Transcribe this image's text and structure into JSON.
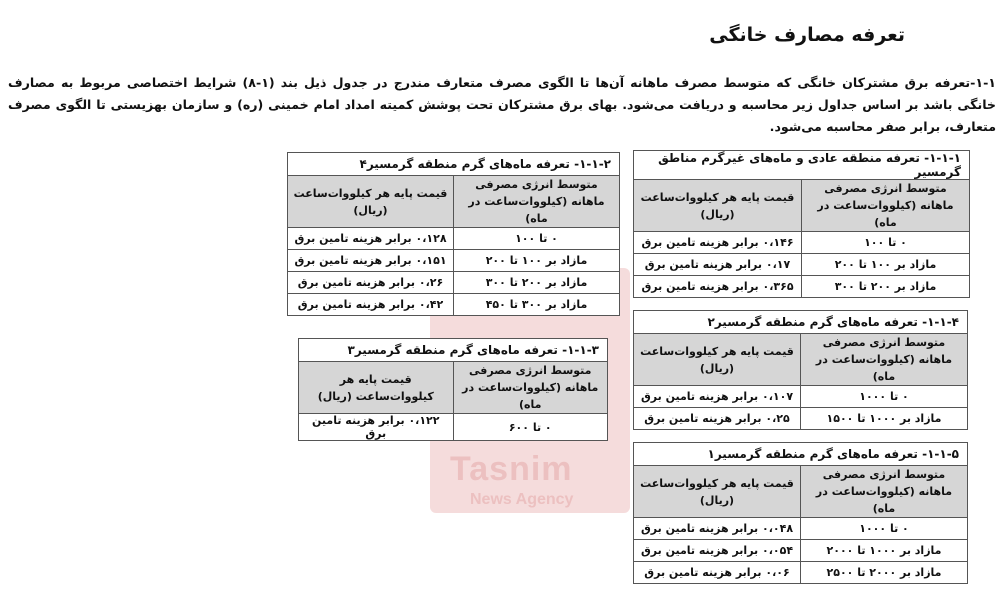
{
  "watermark": {
    "text": "Tasnim",
    "sub": "News Agency"
  },
  "title": "تعرفه مصارف خانگی",
  "paragraph": "۱-۱-تعرفه برق مشترکان خانگی که متوسط مصرف ماهانه آن‌ها تا الگوی مصرف متعارف مندرج در جدول ذیل بند (۱-۸) شرایط اختصاصی مربوط به مصارف خانگی باشد بر اساس جداول زیر محاسبه و دریافت می‌شود. بهای برق مشترکان تحت پوشش کمیته امداد امام خمینی (ره) و سازمان بهزیستی تا الگوی مصرف متعارف، برابر صفر محاسبه می‌شود.",
  "tables": [
    {
      "id": "t1",
      "caption": "۱-۱-۱- تعرفه منطقه عادی و ماه‌های غیرگرم مناطق گرمسیر",
      "headers": [
        "متوسط انرژی مصرفی ماهانه (کیلووات‌ساعت در ماه)",
        "قیمت پایه هر کیلووات‌ساعت (ریال)"
      ],
      "rows": [
        [
          "۰ تا ۱۰۰",
          "۰،۱۴۶ برابر هزینه تامین برق"
        ],
        [
          "مازاد بر ۱۰۰ تا ۲۰۰",
          "۰،۱۷ برابر هزینه تامین برق"
        ],
        [
          "مازاد بر ۲۰۰ تا ۳۰۰",
          "۰،۳۶۵ برابر هزینه تامین برق"
        ]
      ]
    },
    {
      "id": "t2",
      "caption": "۱-۱-۲- تعرفه ماه‌های گرم منطقه گرمسیر۴",
      "headers": [
        "متوسط انرژی مصرفی ماهانه (کیلووات‌ساعت در ماه)",
        "قیمت پایه هر کیلووات‌ساعت (ریال)"
      ],
      "rows": [
        [
          "۰ تا ۱۰۰",
          "۰،۱۲۸ برابر هزینه تامین برق"
        ],
        [
          "مازاد بر ۱۰۰ تا ۲۰۰",
          "۰،۱۵۱ برابر هزینه تامین برق"
        ],
        [
          "مازاد بر ۲۰۰ تا ۳۰۰",
          "۰،۲۶ برابر هزینه تامین برق"
        ],
        [
          "مازاد بر ۳۰۰ تا ۴۵۰",
          "۰،۴۲ برابر هزینه تامین برق"
        ]
      ]
    },
    {
      "id": "t3",
      "caption": "۱-۱-۳- تعرفه ماه‌های گرم منطقه گرمسیر۳",
      "headers": [
        "متوسط انرژی مصرفی ماهانه (کیلووات‌ساعت در ماه)",
        "قیمت پایه هر کیلووات‌ساعت (ریال)"
      ],
      "rows": [
        [
          "۰ تا ۶۰۰",
          "۰،۱۲۲ برابر هزینه تامین برق"
        ]
      ]
    },
    {
      "id": "t4",
      "caption": "۱-۱-۴- تعرفه ماه‌های گرم منطقه گرمسیر۲",
      "headers": [
        "متوسط انرژی مصرفی ماهانه (کیلووات‌ساعت در ماه)",
        "قیمت پایه هر کیلووات‌ساعت (ریال)"
      ],
      "rows": [
        [
          "۰ تا ۱۰۰۰",
          "۰،۱۰۷ برابر هزینه تامین برق"
        ],
        [
          "مازاد بر ۱۰۰۰ تا ۱۵۰۰",
          "۰،۲۵ برابر هزینه تامین برق"
        ]
      ]
    },
    {
      "id": "t5",
      "caption": "۱-۱-۵- تعرفه ماه‌های گرم منطقه گرمسیر۱",
      "headers": [
        "متوسط انرژی مصرفی ماهانه (کیلووات‌ساعت در ماه)",
        "قیمت پایه هر کیلووات‌ساعت (ریال)"
      ],
      "rows": [
        [
          "۰ تا ۱۰۰۰",
          "۰،۰۴۸ برابر هزینه تامین برق"
        ],
        [
          "مازاد بر ۱۰۰۰ تا ۲۰۰۰",
          "۰،۰۵۴ برابر هزینه تامین برق"
        ],
        [
          "مازاد بر ۲۰۰۰ تا ۲۵۰۰",
          "۰،۰۶ برابر هزینه تامین برق"
        ]
      ]
    }
  ]
}
